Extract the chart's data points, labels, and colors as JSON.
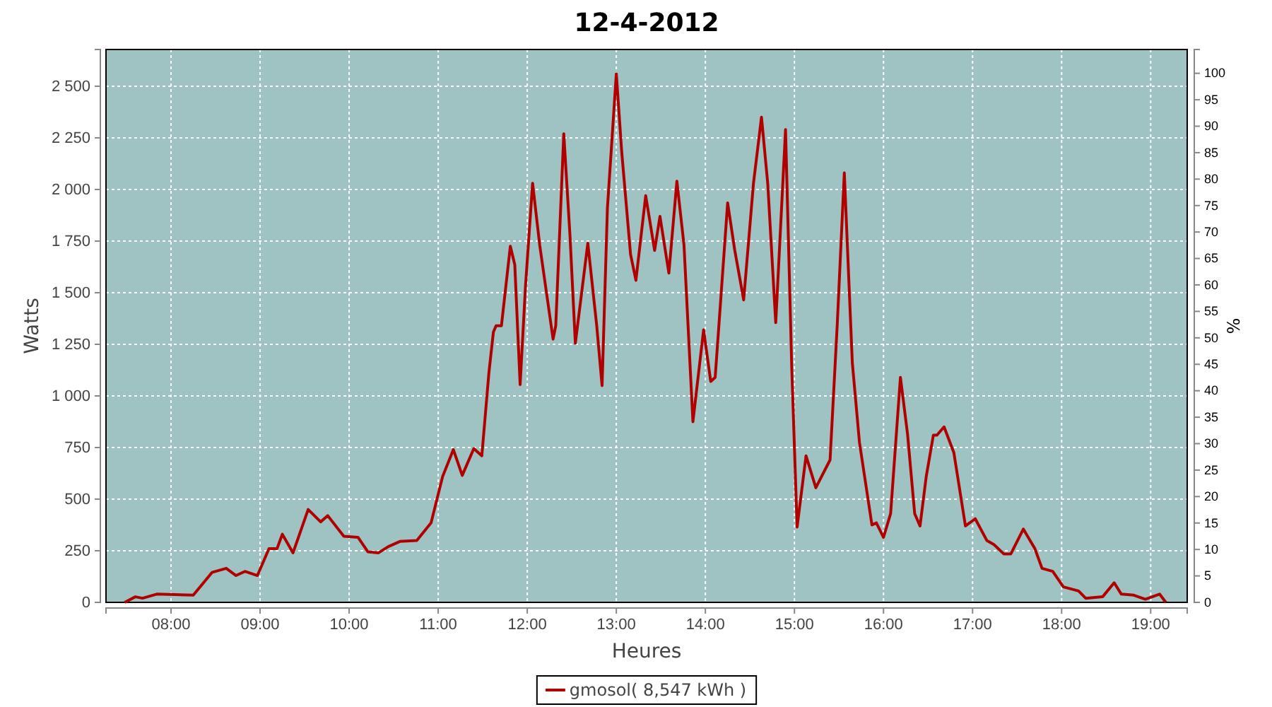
{
  "chart_data": {
    "type": "line",
    "title": "12-4-2012",
    "xlabel": "Heures",
    "ylabel": "Watts",
    "y2label": "%",
    "xlim": [
      7.27,
      19.41
    ],
    "ylim": [
      0,
      2678
    ],
    "y2lim": [
      0,
      104.5
    ],
    "xticks": [
      {
        "value": 8,
        "label": "08:00"
      },
      {
        "value": 9,
        "label": "09:00"
      },
      {
        "value": 10,
        "label": "10:00"
      },
      {
        "value": 11,
        "label": "11:00"
      },
      {
        "value": 12,
        "label": "12:00"
      },
      {
        "value": 13,
        "label": "13:00"
      },
      {
        "value": 14,
        "label": "14:00"
      },
      {
        "value": 15,
        "label": "15:00"
      },
      {
        "value": 16,
        "label": "16:00"
      },
      {
        "value": 17,
        "label": "17:00"
      },
      {
        "value": 18,
        "label": "18:00"
      },
      {
        "value": 19,
        "label": "19:00"
      }
    ],
    "yticks": [
      0,
      250,
      500,
      750,
      {
        "value": 1000,
        "label": "1 000"
      },
      {
        "value": 1250,
        "label": "1 250"
      },
      {
        "value": 1500,
        "label": "1 500"
      },
      {
        "value": 1750,
        "label": "1 750"
      },
      {
        "value": 2000,
        "label": "2 000"
      },
      {
        "value": 2250,
        "label": "2 250"
      },
      {
        "value": 2500,
        "label": "2 500"
      }
    ],
    "y2ticks": [
      0,
      5,
      10,
      15,
      20,
      25,
      30,
      35,
      40,
      45,
      50,
      55,
      60,
      65,
      70,
      75,
      80,
      85,
      90,
      95,
      100
    ],
    "grid": true,
    "legend": "bottom",
    "line_style": "solid",
    "marker": "none",
    "series": [
      {
        "name": "gmosol( 8,547 kWh )",
        "color": "#b00000",
        "x": [
          7.48,
          7.6,
          7.68,
          7.84,
          8.25,
          8.46,
          8.62,
          8.73,
          8.83,
          8.97,
          9.1,
          9.19,
          9.25,
          9.37,
          9.54,
          9.68,
          9.76,
          9.94,
          10.1,
          10.21,
          10.33,
          10.44,
          10.57,
          10.76,
          10.92,
          11.05,
          11.17,
          11.27,
          11.4,
          11.49,
          11.57,
          11.62,
          11.65,
          11.71,
          11.81,
          11.86,
          11.92,
          11.98,
          12.06,
          12.14,
          12.29,
          12.32,
          12.41,
          12.48,
          12.54,
          12.68,
          12.78,
          12.84,
          12.9,
          13.0,
          13.06,
          13.16,
          13.22,
          13.33,
          13.43,
          13.49,
          13.59,
          13.68,
          13.76,
          13.86,
          13.98,
          14.06,
          14.11,
          14.25,
          14.33,
          14.43,
          14.54,
          14.63,
          14.7,
          14.79,
          14.9,
          14.97,
          15.03,
          15.13,
          15.24,
          15.4,
          15.48,
          15.56,
          15.65,
          15.73,
          15.87,
          15.92,
          16.0,
          16.08,
          16.19,
          16.27,
          16.35,
          16.41,
          16.48,
          16.56,
          16.6,
          16.68,
          16.79,
          16.92,
          17.03,
          17.16,
          17.24,
          17.35,
          17.43,
          17.57,
          17.7,
          17.78,
          17.9,
          18.02,
          18.19,
          18.27,
          18.46,
          18.59,
          18.67,
          18.81,
          18.94,
          19.1,
          19.17
        ],
        "values": [
          0,
          27,
          20,
          40,
          35,
          145,
          165,
          130,
          150,
          130,
          260,
          260,
          330,
          240,
          450,
          390,
          420,
          320,
          315,
          245,
          240,
          270,
          295,
          300,
          385,
          610,
          740,
          615,
          745,
          710,
          1115,
          1310,
          1340,
          1340,
          1725,
          1635,
          1055,
          1530,
          2030,
          1730,
          1275,
          1340,
          2270,
          1775,
          1255,
          1740,
          1340,
          1050,
          1910,
          2560,
          2185,
          1685,
          1560,
          1970,
          1705,
          1870,
          1595,
          2040,
          1730,
          875,
          1320,
          1070,
          1090,
          1935,
          1705,
          1465,
          2030,
          2350,
          2030,
          1355,
          2290,
          1135,
          365,
          710,
          555,
          690,
          1340,
          2080,
          1160,
          775,
          375,
          385,
          315,
          430,
          1090,
          815,
          430,
          370,
          610,
          810,
          810,
          850,
          725,
          370,
          405,
          300,
          280,
          235,
          235,
          355,
          260,
          165,
          150,
          75,
          55,
          20,
          27,
          95,
          40,
          35,
          15,
          40,
          0
        ]
      }
    ]
  }
}
